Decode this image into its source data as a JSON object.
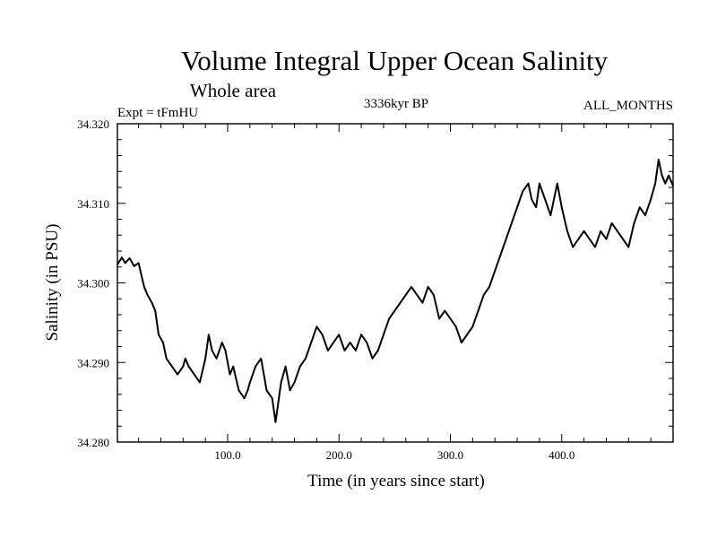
{
  "chart_data": {
    "type": "line",
    "title": "Volume Integral Upper Ocean Salinity",
    "subtitle": "Whole area",
    "left_label": "Expt = tFmHU",
    "center_label": "3336kyr BP",
    "right_label": "ALL_MONTHS",
    "xlabel": "Time (in years since start)",
    "ylabel": "Salinity (in PSU)",
    "xlim": [
      1,
      500
    ],
    "ylim": [
      34.28,
      34.32
    ],
    "x_tick_labels": [
      "100.0",
      "200.0",
      "300.0",
      "400.0"
    ],
    "x_tick_values": [
      100,
      200,
      300,
      400
    ],
    "y_tick_labels": [
      "34.280",
      "34.290",
      "34.300",
      "34.310",
      "34.320"
    ],
    "y_tick_values": [
      34.28,
      34.29,
      34.3,
      34.31,
      34.32
    ],
    "series": [
      {
        "name": "salinity",
        "x": [
          1,
          5,
          8,
          12,
          16,
          20,
          25,
          28,
          32,
          35,
          38,
          42,
          45,
          50,
          55,
          60,
          62,
          65,
          70,
          75,
          80,
          83,
          86,
          90,
          95,
          98,
          102,
          105,
          110,
          115,
          118,
          120,
          125,
          130,
          135,
          140,
          143,
          145,
          148,
          152,
          156,
          160,
          165,
          170,
          175,
          180,
          185,
          190,
          195,
          200,
          205,
          210,
          215,
          220,
          225,
          230,
          235,
          240,
          245,
          250,
          255,
          260,
          265,
          270,
          275,
          280,
          285,
          290,
          295,
          300,
          305,
          310,
          315,
          320,
          325,
          330,
          335,
          340,
          345,
          350,
          355,
          360,
          365,
          370,
          373,
          377,
          380,
          385,
          390,
          393,
          396,
          400,
          405,
          410,
          415,
          420,
          425,
          430,
          435,
          440,
          445,
          450,
          455,
          460,
          465,
          470,
          475,
          480,
          484,
          487,
          490,
          493,
          496,
          500
        ],
        "values": [
          34.3023,
          34.3032,
          34.3025,
          34.3031,
          34.3021,
          34.3025,
          34.2995,
          34.2985,
          34.2975,
          34.2965,
          34.2935,
          34.2925,
          34.2905,
          34.2895,
          34.2885,
          34.2895,
          34.2905,
          34.2895,
          34.2885,
          34.2875,
          34.2905,
          34.2935,
          34.2915,
          34.2905,
          34.2925,
          34.2915,
          34.2885,
          34.2895,
          34.2865,
          34.2855,
          34.2865,
          34.2875,
          34.2895,
          34.2905,
          34.2865,
          34.2855,
          34.2825,
          34.2845,
          34.2875,
          34.2895,
          34.2865,
          34.2875,
          34.2895,
          34.2905,
          34.2925,
          34.2945,
          34.2935,
          34.2915,
          34.2925,
          34.2935,
          34.2915,
          34.2925,
          34.2915,
          34.2935,
          34.2925,
          34.2905,
          34.2915,
          34.2935,
          34.2955,
          34.2965,
          34.2975,
          34.2985,
          34.2995,
          34.2985,
          34.2975,
          34.2995,
          34.2985,
          34.2955,
          34.2965,
          34.2955,
          34.2945,
          34.2925,
          34.2935,
          34.2945,
          34.2965,
          34.2985,
          34.2995,
          34.3015,
          34.3035,
          34.3055,
          34.3075,
          34.3095,
          34.3115,
          34.3125,
          34.3105,
          34.3095,
          34.3125,
          34.3105,
          34.3085,
          34.3105,
          34.3125,
          34.3095,
          34.3065,
          34.3045,
          34.3055,
          34.3065,
          34.3055,
          34.3045,
          34.3065,
          34.3055,
          34.3075,
          34.3065,
          34.3055,
          34.3045,
          34.3075,
          34.3095,
          34.3085,
          34.3105,
          34.3125,
          34.3155,
          34.3135,
          34.3125,
          34.3135,
          34.3122
        ]
      }
    ]
  }
}
